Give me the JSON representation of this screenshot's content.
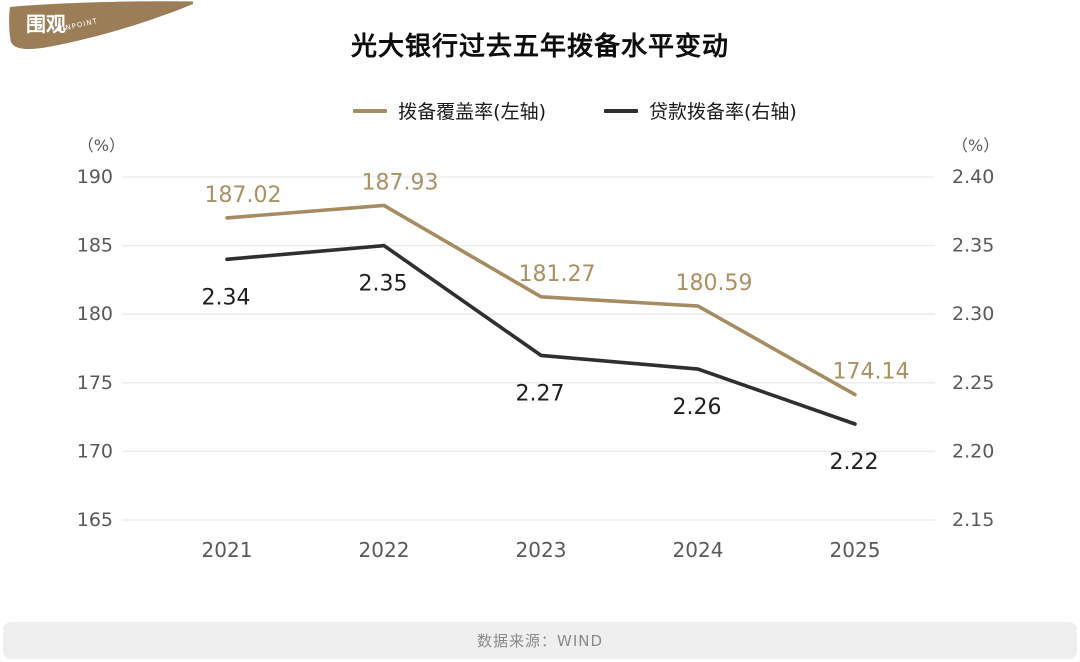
{
  "logo": {
    "text": "围观",
    "subtext": "INPOINT",
    "color": "#9b7d58"
  },
  "title": "光大银行过去五年拨备水平变动",
  "footer": {
    "source_label": "数据来源：WIND"
  },
  "chart_data": {
    "type": "line",
    "categories": [
      "2021",
      "2022",
      "2023",
      "2024",
      "2025"
    ],
    "series": [
      {
        "name": "拨备覆盖率(左轴)",
        "axis": "left",
        "color": "#a58c63",
        "label_color": "#a89067",
        "values": [
          187.02,
          187.93,
          181.27,
          180.59,
          174.14
        ],
        "labels": [
          "187.02",
          "187.93",
          "181.27",
          "180.59",
          "174.14"
        ]
      },
      {
        "name": "贷款拨备率(右轴)",
        "axis": "right",
        "color": "#2f2f2f",
        "label_color": "#1f1f1f",
        "values": [
          2.34,
          2.35,
          2.27,
          2.26,
          2.22
        ],
        "labels": [
          "2.34",
          "2.35",
          "2.27",
          "2.26",
          "2.22"
        ]
      }
    ],
    "left_axis": {
      "unit": "（%）",
      "ticks": [
        "190",
        "185",
        "180",
        "175",
        "170",
        "165"
      ],
      "min": 165,
      "max": 190
    },
    "right_axis": {
      "unit": "（%）",
      "ticks": [
        "2.40",
        "2.35",
        "2.30",
        "2.25",
        "2.20",
        "2.15"
      ],
      "min": 2.15,
      "max": 2.4
    },
    "grid": true,
    "gridline_color": "#eaeaea",
    "tick_color": "#595959",
    "legend_position": "top"
  }
}
